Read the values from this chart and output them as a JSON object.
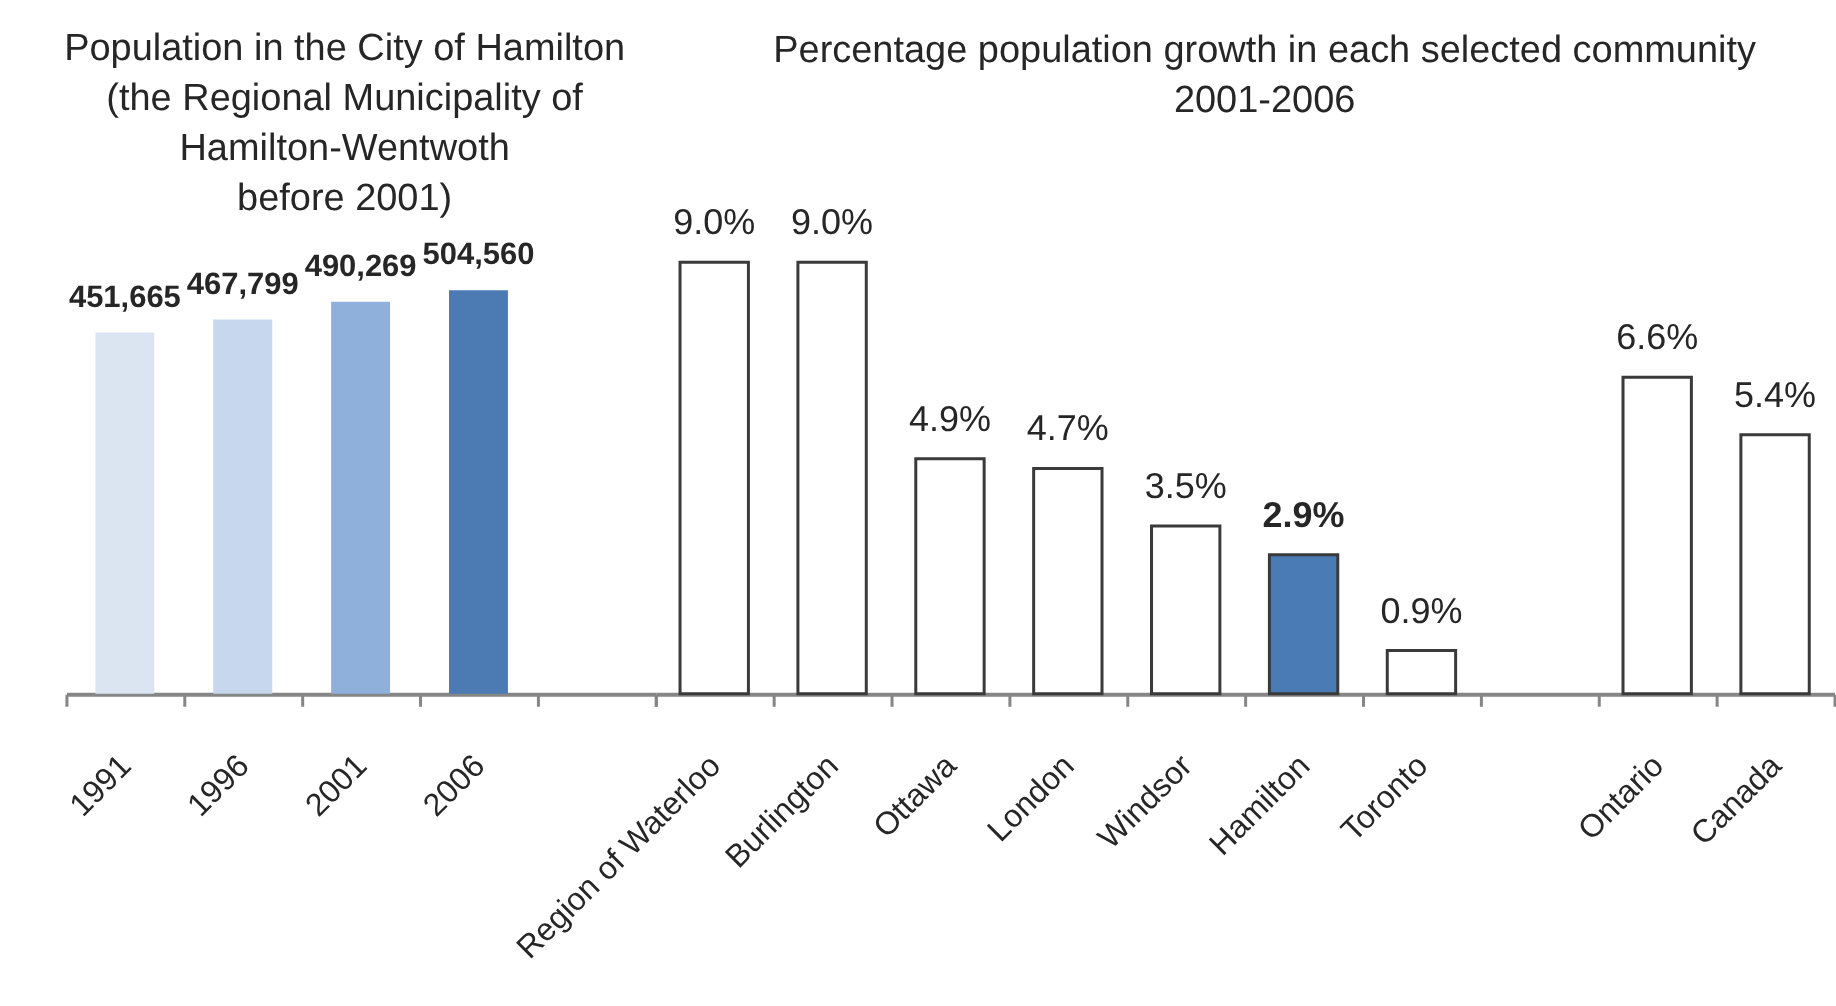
{
  "chart_data": [
    {
      "type": "bar",
      "title": "Population in the City of Hamilton\n(the Regional Municipality of\nHamilton-Wentwoth\nbefore 2001)",
      "categories": [
        "1991",
        "1996",
        "2001",
        "2006"
      ],
      "values": [
        451665,
        467799,
        490269,
        504560
      ],
      "colors": [
        "#dbe5f1",
        "#c6d7ee",
        "#8eb0db",
        "#4c7bb4"
      ],
      "value_labels": [
        "451,665",
        "467,799",
        "490,269",
        "504,560"
      ],
      "tick_labels": "x"
    },
    {
      "type": "bar",
      "title": "Percentage population growth in each selected community\n2001-2006",
      "categories": [
        "Region of Waterloo",
        "Burlington",
        "Ottawa",
        "London",
        "Windsor",
        "Hamilton",
        "Toronto",
        null,
        "Ontario",
        "Canada"
      ],
      "values": [
        9.0,
        9.0,
        4.9,
        4.7,
        3.5,
        2.9,
        0.9,
        null,
        6.6,
        5.4
      ],
      "colors": [
        "#ffffff",
        "#ffffff",
        "#ffffff",
        "#ffffff",
        "#ffffff",
        "#4a7bb4",
        "#ffffff",
        "#ffffff",
        "#ffffff",
        "#ffffff"
      ],
      "value_labels": [
        "9.0%",
        "9.0%",
        "4.9%",
        "4.7%",
        "3.5%",
        "2.9%",
        "0.9%",
        null,
        "6.6%",
        "5.4%"
      ],
      "tick_labels": "x"
    }
  ]
}
